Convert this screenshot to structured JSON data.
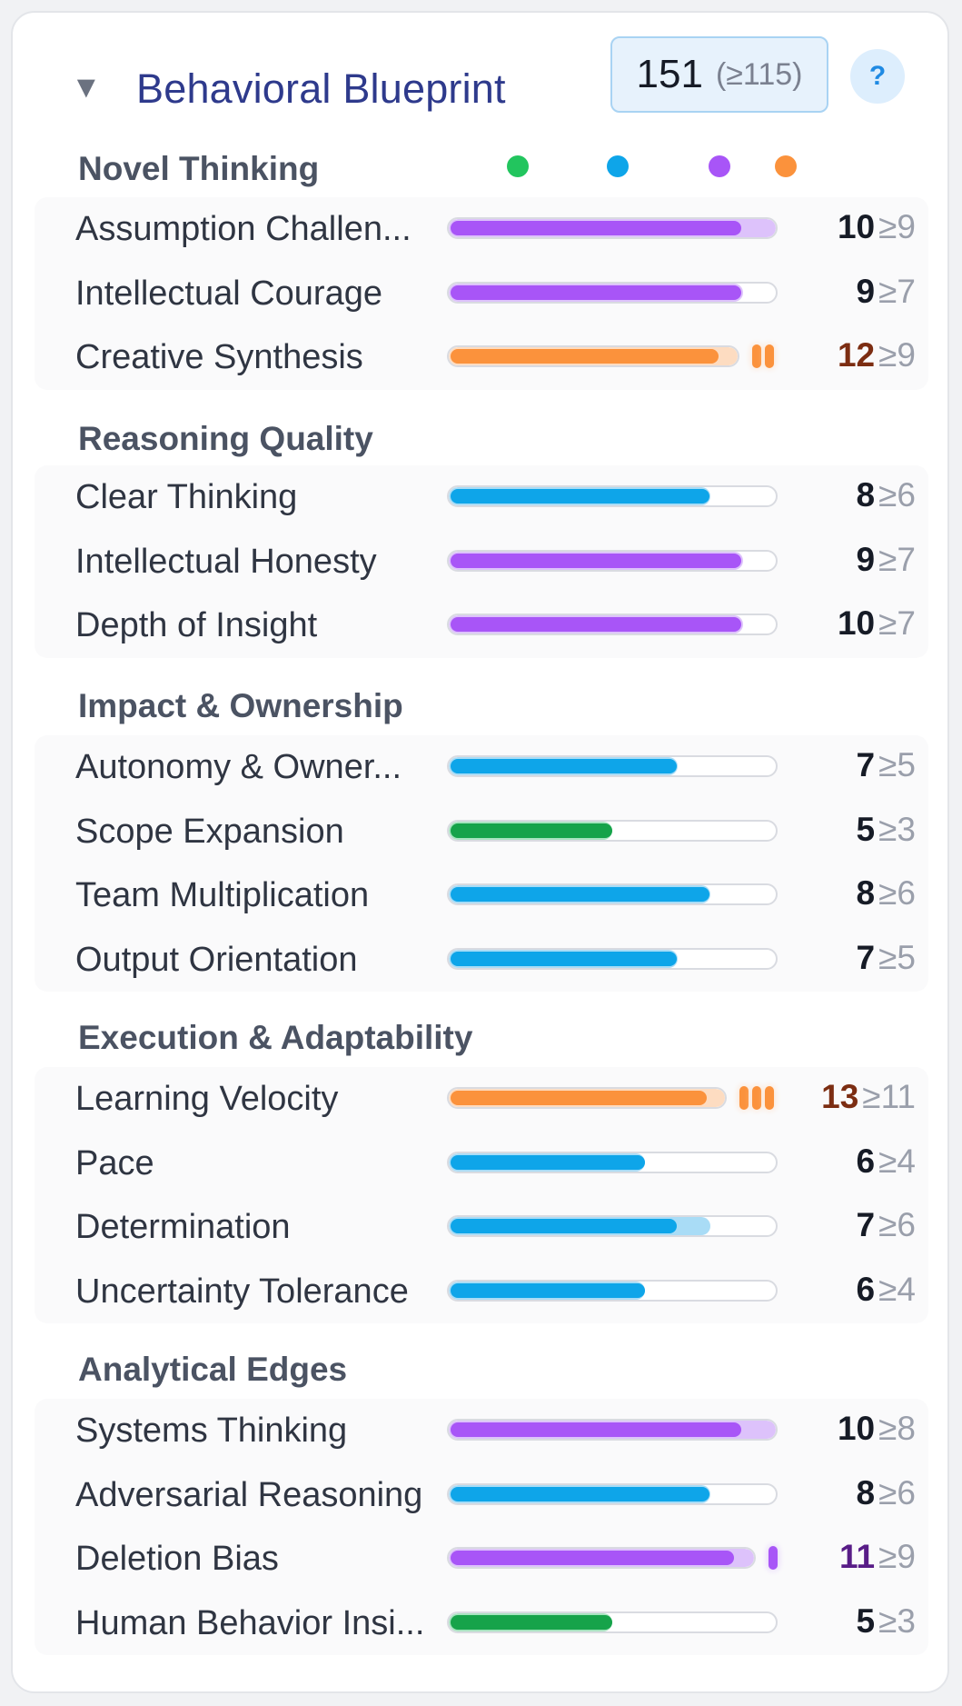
{
  "header": {
    "toggle_icon": "▼",
    "title": "Behavioral Blueprint",
    "total_score": "151",
    "total_threshold": "(≥115)",
    "help_label": "?"
  },
  "legend": [
    {
      "color": "#22c55e"
    },
    {
      "color": "#0ea5e9"
    },
    {
      "color": "#a855f7"
    },
    {
      "color": "#fb923c"
    }
  ],
  "colors": {
    "green": {
      "fill": "#16a34a",
      "range": "#a7e3bf"
    },
    "blue": {
      "fill": "#0ea5e9",
      "range": "#a9dcf6"
    },
    "purple": {
      "fill": "#a855f7",
      "range": "#ddc2fb"
    },
    "orange": {
      "fill": "#fb923c",
      "range": "#fddcc1"
    },
    "score_exceed_orange": "#7c2d12",
    "score_exceed_purple": "#581c87"
  },
  "max_score": 10,
  "sections": [
    {
      "title": "Novel Thinking",
      "rows": [
        {
          "label": "Assumption Challen...",
          "score": "10",
          "threshold": "≥9",
          "value": 10,
          "min": 9,
          "color": "purple",
          "excess": 0
        },
        {
          "label": "Intellectual Courage",
          "score": "9",
          "threshold": "≥7",
          "value": 9,
          "min": 7,
          "color": "purple",
          "excess": 0
        },
        {
          "label": "Creative Synthesis",
          "score": "12",
          "threshold": "≥9",
          "value": 12,
          "min": 9,
          "color": "orange",
          "excess": 2
        }
      ]
    },
    {
      "title": "Reasoning Quality",
      "rows": [
        {
          "label": "Clear Thinking",
          "score": "8",
          "threshold": "≥6",
          "value": 8,
          "min": 6,
          "color": "blue",
          "excess": 0
        },
        {
          "label": "Intellectual Honesty",
          "score": "9",
          "threshold": "≥7",
          "value": 9,
          "min": 7,
          "color": "purple",
          "excess": 0
        },
        {
          "label": "Depth of Insight",
          "score": "10",
          "threshold": "≥7",
          "value": 10,
          "min": 7,
          "color": "purple",
          "excess": 0
        }
      ]
    },
    {
      "title": "Impact & Ownership",
      "rows": [
        {
          "label": "Autonomy & Owner...",
          "score": "7",
          "threshold": "≥5",
          "value": 7,
          "min": 5,
          "color": "blue",
          "excess": 0
        },
        {
          "label": "Scope Expansion",
          "score": "5",
          "threshold": "≥3",
          "value": 5,
          "min": 3,
          "color": "green",
          "excess": 0
        },
        {
          "label": "Team Multiplication",
          "score": "8",
          "threshold": "≥6",
          "value": 8,
          "min": 6,
          "color": "blue",
          "excess": 0
        },
        {
          "label": "Output Orientation",
          "score": "7",
          "threshold": "≥5",
          "value": 7,
          "min": 5,
          "color": "blue",
          "excess": 0
        }
      ]
    },
    {
      "title": "Execution & Adaptability",
      "rows": [
        {
          "label": "Learning Velocity",
          "score": "13",
          "threshold": "≥11",
          "value": 13,
          "min": 11,
          "color": "orange",
          "excess": 3
        },
        {
          "label": "Pace",
          "score": "6",
          "threshold": "≥4",
          "value": 6,
          "min": 4,
          "color": "blue",
          "excess": 0
        },
        {
          "label": "Determination",
          "score": "7",
          "threshold": "≥6",
          "value": 7,
          "min": 6,
          "color": "blue",
          "excess": 0
        },
        {
          "label": "Uncertainty Tolerance",
          "score": "6",
          "threshold": "≥4",
          "value": 6,
          "min": 4,
          "color": "blue",
          "excess": 0
        }
      ]
    },
    {
      "title": "Analytical Edges",
      "rows": [
        {
          "label": "Systems Thinking",
          "score": "10",
          "threshold": "≥8",
          "value": 10,
          "min": 8,
          "color": "purple",
          "excess": 0
        },
        {
          "label": "Adversarial Reasoning",
          "score": "8",
          "threshold": "≥6",
          "value": 8,
          "min": 6,
          "color": "blue",
          "excess": 0
        },
        {
          "label": "Deletion Bias",
          "score": "11",
          "threshold": "≥9",
          "value": 11,
          "min": 9,
          "color": "purple",
          "excess": 1
        },
        {
          "label": "Human Behavior Insi...",
          "score": "5",
          "threshold": "≥3",
          "value": 5,
          "min": 3,
          "color": "green",
          "excess": 0
        }
      ]
    }
  ]
}
